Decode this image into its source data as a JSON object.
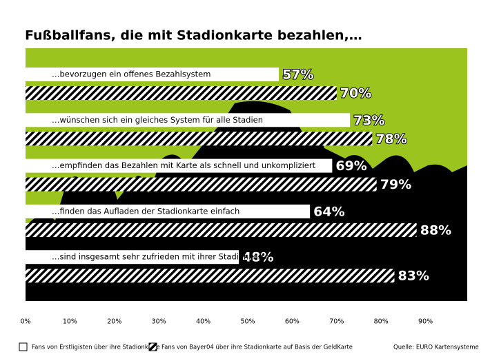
{
  "chart_data": {
    "type": "hbar-grouped",
    "title": "Fußballfans, die mit Stadionkarte bezahlen,…",
    "categories": [
      "…bevorzugen ein offenes Bezahlsystem",
      "…wünschen sich ein gleiches System für alle Stadien",
      "…empfinden das Bezahlen mit Karte als schnell und unkompliziert",
      "…finden das Aufladen der Stadionkarte einfach",
      "…sind insgesamt sehr zufrieden mit ihrer Stadionkarte"
    ],
    "series": [
      {
        "name": "Fans von Erstligisten über ihre Stadionkarte",
        "color": "#ffffff",
        "values": [
          57,
          73,
          69,
          64,
          48
        ],
        "value_labels": [
          "57%",
          "73%",
          "69%",
          "64%",
          "48%"
        ]
      },
      {
        "name": "Fans von Bayer04 über ihre Stadionkarte auf Basis der GeldKarte",
        "color": "#000000",
        "pattern": "diagonal-stripes",
        "values": [
          70,
          78,
          79,
          88,
          83
        ],
        "value_labels": [
          "70%",
          "78%",
          "79%",
          "88%",
          "83%"
        ]
      }
    ],
    "xlim": [
      0,
      100
    ],
    "xticks": [
      {
        "value": 0,
        "label": "0%"
      },
      {
        "value": 10,
        "label": "10%"
      },
      {
        "value": 20,
        "label": "20%"
      },
      {
        "value": 30,
        "label": "30%"
      },
      {
        "value": 40,
        "label": "40%"
      },
      {
        "value": 50,
        "label": "50%"
      },
      {
        "value": 60,
        "label": "60%"
      },
      {
        "value": 70,
        "label": "70%"
      },
      {
        "value": 80,
        "label": "80%"
      },
      {
        "value": 90,
        "label": "90%"
      }
    ],
    "background": "#9cc41e",
    "source": "Quelle: EURO Kartensysteme"
  }
}
